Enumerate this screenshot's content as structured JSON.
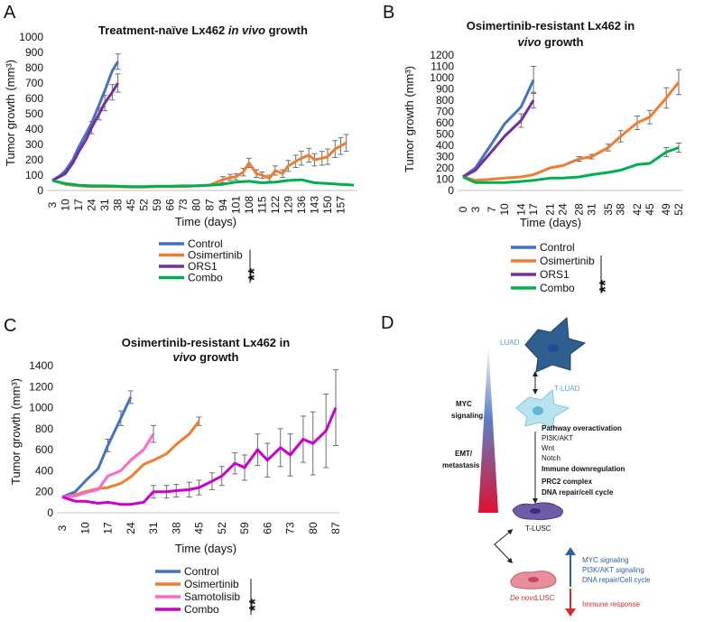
{
  "panels": {
    "a": "A",
    "b": "B",
    "c": "C",
    "d": "D"
  },
  "significance": {
    "a": "**",
    "b": "**",
    "c": "**"
  },
  "colors": {
    "control": "#4472c4",
    "osimertinib": "#ed7d31",
    "ors1": "#7030a0",
    "combo_green": "#00b050",
    "samotolisib": "#ff66cc",
    "combo_magenta": "#cc00cc"
  },
  "chart_data": [
    {
      "id": "A",
      "type": "line",
      "title_parts": [
        "Treatment-naïve Lx462 ",
        "in vivo",
        " growth"
      ],
      "xlabel": "Time (days)",
      "ylabel": "Tumor growth (mm³)",
      "ylim": [
        0,
        1000
      ],
      "yticks": [
        "0",
        "100",
        "200",
        "300",
        "400",
        "500",
        "600",
        "700",
        "800",
        "900",
        "1000"
      ],
      "categories": [
        "3",
        "10",
        "17",
        "24",
        "31",
        "38",
        "45",
        "52",
        "59",
        "66",
        "73",
        "80",
        "87",
        "94",
        "101",
        "108",
        "115",
        "122",
        "129",
        "136",
        "143",
        "150",
        "157"
      ],
      "xlim": [
        3,
        164
      ],
      "series": [
        {
          "name": "Control",
          "color": "#4472c4",
          "x": [
            3,
            7,
            10,
            14,
            17,
            21,
            24,
            28,
            31,
            35,
            38
          ],
          "y": [
            65,
            95,
            130,
            200,
            280,
            370,
            440,
            560,
            650,
            780,
            840
          ],
          "err": [
            0,
            0,
            0,
            0,
            0,
            0,
            0,
            0,
            0,
            0,
            50
          ]
        },
        {
          "name": "Osimertinib",
          "color": "#ed7d31",
          "x": [
            3,
            10,
            17,
            24,
            31,
            38,
            45,
            52,
            59,
            66,
            73,
            80,
            87,
            91,
            94,
            98,
            101,
            105,
            108,
            112,
            115,
            119,
            122,
            126,
            129,
            133,
            136,
            140,
            143,
            147,
            150,
            154,
            157,
            160
          ],
          "y": [
            65,
            40,
            30,
            25,
            25,
            25,
            22,
            22,
            25,
            25,
            25,
            30,
            35,
            55,
            70,
            85,
            90,
            120,
            180,
            110,
            100,
            80,
            130,
            110,
            160,
            190,
            210,
            230,
            200,
            210,
            220,
            270,
            290,
            310
          ],
          "err": [
            0,
            0,
            0,
            0,
            0,
            0,
            0,
            0,
            0,
            0,
            0,
            0,
            0,
            0,
            20,
            20,
            20,
            25,
            30,
            25,
            20,
            20,
            30,
            25,
            35,
            40,
            45,
            45,
            40,
            45,
            50,
            55,
            55,
            55
          ]
        },
        {
          "name": "ORS1",
          "color": "#7030a0",
          "x": [
            3,
            7,
            10,
            14,
            17,
            21,
            24,
            28,
            31,
            35,
            38
          ],
          "y": [
            65,
            90,
            110,
            180,
            250,
            330,
            410,
            500,
            570,
            640,
            700
          ],
          "err": [
            0,
            0,
            0,
            0,
            0,
            0,
            40,
            40,
            50,
            50,
            60
          ]
        },
        {
          "name": "Combo",
          "color": "#00b050",
          "x": [
            3,
            10,
            17,
            24,
            31,
            38,
            45,
            52,
            59,
            66,
            73,
            80,
            87,
            94,
            101,
            108,
            115,
            122,
            129,
            136,
            143,
            150,
            157,
            164
          ],
          "y": [
            65,
            45,
            35,
            30,
            30,
            28,
            25,
            25,
            28,
            28,
            30,
            30,
            35,
            40,
            55,
            60,
            50,
            55,
            65,
            70,
            50,
            45,
            40,
            35
          ],
          "err": [
            0,
            0,
            0,
            0,
            0,
            0,
            0,
            0,
            0,
            0,
            0,
            0,
            0,
            0,
            0,
            0,
            0,
            0,
            0,
            0,
            0,
            0,
            0,
            0
          ]
        }
      ],
      "legend": [
        "Control",
        "Osimertinib",
        "ORS1",
        "Combo"
      ]
    },
    {
      "id": "B",
      "type": "line",
      "title_line1": "Osimertinib-resistant Lx462 in",
      "title_line2_parts": [
        "vivo",
        " growth"
      ],
      "xlabel": "Time (days)",
      "ylabel": "Tumor growth (mm³)",
      "ylim": [
        0,
        1200
      ],
      "yticks": [
        "0",
        "100",
        "200",
        "300",
        "400",
        "500",
        "600",
        "700",
        "800",
        "900",
        "1000",
        "1100",
        "1200"
      ],
      "categories": [
        "0",
        "3",
        "7",
        "10",
        "14",
        "17",
        "21",
        "24",
        "28",
        "31",
        "35",
        "38",
        "42",
        "45",
        "49",
        "52"
      ],
      "series": [
        {
          "name": "Control",
          "color": "#4472c4",
          "x": [
            0,
            3,
            7,
            10,
            14,
            17
          ],
          "y": [
            120,
            200,
            420,
            590,
            740,
            980
          ],
          "err": [
            0,
            0,
            0,
            0,
            0,
            120
          ]
        },
        {
          "name": "Osimertinib",
          "color": "#ed7d31",
          "x": [
            0,
            3,
            7,
            10,
            14,
            17,
            21,
            24,
            28,
            31,
            35,
            38,
            42,
            45,
            49,
            52
          ],
          "y": [
            120,
            90,
            100,
            110,
            120,
            140,
            200,
            220,
            280,
            300,
            380,
            480,
            600,
            650,
            820,
            960
          ],
          "err": [
            0,
            0,
            0,
            0,
            0,
            0,
            0,
            0,
            20,
            20,
            30,
            50,
            60,
            60,
            90,
            110
          ]
        },
        {
          "name": "ORS1",
          "color": "#7030a0",
          "x": [
            0,
            3,
            7,
            10,
            14,
            17
          ],
          "y": [
            120,
            180,
            350,
            480,
            620,
            800
          ],
          "err": [
            0,
            0,
            0,
            0,
            60,
            70
          ]
        },
        {
          "name": "Combo",
          "color": "#00b050",
          "x": [
            0,
            3,
            7,
            10,
            14,
            17,
            21,
            24,
            28,
            31,
            35,
            38,
            42,
            45,
            49,
            52
          ],
          "y": [
            120,
            70,
            70,
            70,
            80,
            90,
            110,
            110,
            120,
            140,
            160,
            180,
            230,
            240,
            340,
            380
          ],
          "err": [
            0,
            0,
            0,
            0,
            0,
            0,
            0,
            0,
            0,
            0,
            0,
            0,
            0,
            0,
            40,
            40
          ]
        }
      ],
      "legend": [
        "Control",
        "Osimertinib",
        "ORS1",
        "Combo"
      ]
    },
    {
      "id": "C",
      "type": "line",
      "title_line1": "Osimertinib-resistant Lx462 in",
      "title_line2_parts": [
        "vivo",
        " growth"
      ],
      "xlabel": "Time (days)",
      "ylabel": "Tumor growth (mm³)",
      "ylim": [
        0,
        1400
      ],
      "yticks": [
        "0",
        "200",
        "400",
        "600",
        "800",
        "1000",
        "1200",
        "1400"
      ],
      "categories": [
        "3",
        "10",
        "17",
        "24",
        "31",
        "38",
        "45",
        "52",
        "59",
        "66",
        "73",
        "80",
        "87"
      ],
      "series": [
        {
          "name": "Control",
          "color": "#4472c4",
          "x": [
            3,
            7,
            10,
            14,
            17,
            21,
            24
          ],
          "y": [
            150,
            200,
            300,
            420,
            640,
            900,
            1100
          ],
          "err": [
            0,
            0,
            0,
            0,
            60,
            70,
            60
          ]
        },
        {
          "name": "Osimertinib",
          "color": "#ed7d31",
          "x": [
            3,
            7,
            10,
            14,
            17,
            21,
            24,
            28,
            31,
            35,
            38,
            42,
            45
          ],
          "y": [
            150,
            170,
            200,
            230,
            240,
            280,
            340,
            460,
            500,
            560,
            650,
            750,
            870
          ],
          "err": [
            0,
            0,
            0,
            0,
            0,
            0,
            0,
            0,
            0,
            0,
            0,
            0,
            40
          ]
        },
        {
          "name": "Samotolisib",
          "color": "#ff66cc",
          "x": [
            3,
            7,
            10,
            14,
            17,
            21,
            24,
            28,
            31
          ],
          "y": [
            150,
            160,
            190,
            220,
            350,
            400,
            500,
            600,
            750
          ],
          "err": [
            0,
            0,
            0,
            0,
            0,
            0,
            0,
            0,
            80
          ]
        },
        {
          "name": "Combo",
          "color": "#cc00cc",
          "x": [
            3,
            7,
            10,
            14,
            17,
            21,
            24,
            28,
            31,
            35,
            38,
            42,
            45,
            49,
            52,
            56,
            59,
            63,
            66,
            70,
            73,
            77,
            80,
            84,
            87
          ],
          "y": [
            150,
            110,
            110,
            90,
            100,
            80,
            80,
            100,
            200,
            200,
            210,
            220,
            240,
            300,
            350,
            470,
            430,
            600,
            500,
            620,
            550,
            700,
            660,
            780,
            1000
          ],
          "err": [
            0,
            0,
            0,
            0,
            0,
            0,
            0,
            0,
            60,
            60,
            60,
            70,
            70,
            80,
            90,
            100,
            120,
            150,
            160,
            180,
            200,
            220,
            300,
            350,
            360
          ]
        }
      ],
      "legend": [
        "Control",
        "Osimertinib",
        "Samotolisib",
        "Combo"
      ]
    }
  ],
  "diagram_d": {
    "luad": "LUAD",
    "tluad": "T-LUAD",
    "tlusc": "T-LUSC",
    "de_novo_italic": "De novo",
    "de_novo_rest": " LUSC",
    "myc_left": [
      "MYC",
      "signaling"
    ],
    "emt_left": [
      "EMT/",
      "metastasis"
    ],
    "pathway": {
      "title": "Pathway overactivation",
      "items": [
        "PI3K/AKT",
        "Wnt",
        "Notch"
      ],
      "immune": "Immune downregulation",
      "prc2": "PRC2 complex",
      "dna": "DNA repair/cell cycle"
    },
    "right_up": [
      "MYC signaling",
      "PI3K/AKT signaling",
      "DNA repair/Cell cycle"
    ],
    "right_down": "Immune response"
  }
}
